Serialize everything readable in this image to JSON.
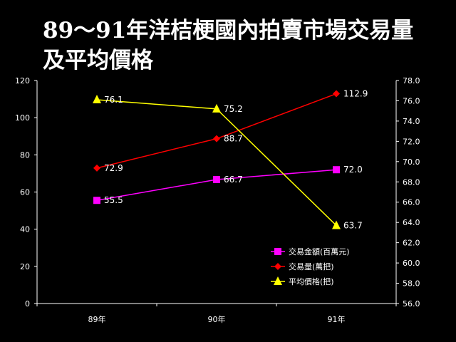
{
  "slide": {
    "title_line1": "89～91年洋桔梗國內拍賣市場交易量",
    "title_line2": "及平均價格"
  },
  "chart_data": {
    "type": "line",
    "categories": [
      "89年",
      "90年",
      "91年"
    ],
    "y_left": {
      "min": 0,
      "max": 120,
      "step": 20,
      "ticks": [
        "0",
        "20",
        "40",
        "60",
        "80",
        "100",
        "120"
      ]
    },
    "y_right": {
      "min": 56,
      "max": 78,
      "step": 2,
      "ticks": [
        "56.0",
        "58.0",
        "60.0",
        "62.0",
        "64.0",
        "66.0",
        "68.0",
        "70.0",
        "72.0",
        "74.0",
        "76.0",
        "78.0"
      ]
    },
    "grid": false,
    "legend_position": "bottom-right-inside",
    "series": [
      {
        "name": "交易金額(百萬元)",
        "axis": "left",
        "marker": "square",
        "color": "#ff00ff",
        "values": [
          55.5,
          66.7,
          72.0
        ],
        "labels": [
          "55.5",
          "66.7",
          "72.0"
        ]
      },
      {
        "name": "交易量(萬把)",
        "axis": "left",
        "marker": "diamond",
        "color": "#ff0000",
        "values": [
          72.9,
          88.7,
          112.9
        ],
        "labels": [
          "72.9",
          "88.7",
          "112.9"
        ]
      },
      {
        "name": "平均價格(把)",
        "axis": "right",
        "marker": "triangle",
        "color": "#ffff00",
        "values": [
          76.1,
          75.2,
          63.7
        ],
        "labels": [
          "76.1",
          "75.2",
          "63.7"
        ]
      }
    ]
  }
}
